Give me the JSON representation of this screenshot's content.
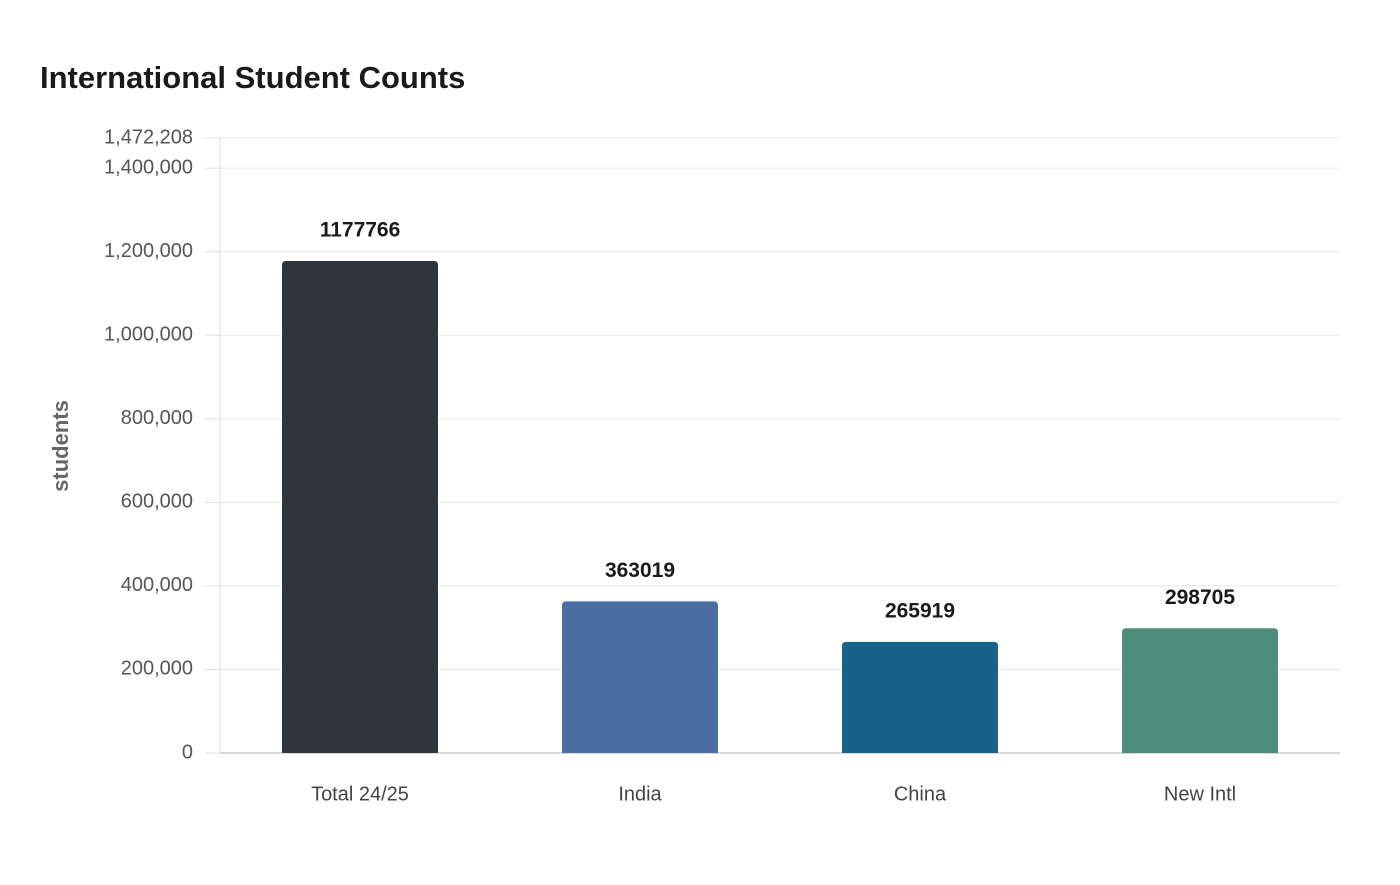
{
  "chart_data": {
    "type": "bar",
    "title": "International Student Counts",
    "y_label": "students",
    "categories": [
      "Total 24/25",
      "India",
      "China",
      "New Intl"
    ],
    "values": [
      1177766,
      363019,
      265919,
      298705
    ],
    "colors": [
      "#2d3538",
      "#4a6ea3",
      "#186187",
      "#4f8c7a"
    ],
    "ylim": [
      0,
      1472208
    ],
    "yticks": [
      0,
      {
        "value": 200000,
        "label": "200,000"
      },
      {
        "value": 400000,
        "label": "400,000"
      },
      {
        "value": 600000,
        "label": "600,000"
      },
      {
        "value": 800000,
        "label": "800,000"
      },
      {
        "value": 1000000,
        "label": "1,000,000"
      },
      {
        "value": 1200000,
        "label": "1,200,000"
      },
      {
        "value": 1400000,
        "label": "1,400,000"
      },
      {
        "value": 1472208,
        "label": "1,472,208"
      }
    ],
    "grid": true
  }
}
